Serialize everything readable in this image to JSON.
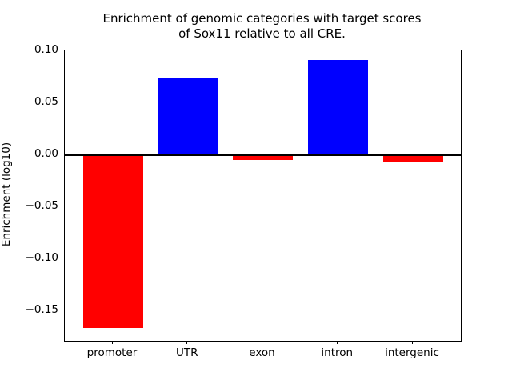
{
  "chart_data": {
    "type": "bar",
    "title_lines": [
      "Enrichment of genomic categories with target scores",
      "of Sox11 relative to all CRE."
    ],
    "title": "Enrichment of genomic categories with target scores of Sox11 relative to all CRE.",
    "xlabel": "",
    "ylabel": "Enrichment (log10)",
    "categories": [
      "promoter",
      "UTR",
      "exon",
      "intron",
      "intergenic"
    ],
    "values": [
      -0.167,
      0.074,
      -0.005,
      0.091,
      -0.007
    ],
    "bar_colors": [
      "#ff0000",
      "#0000ff",
      "#ff0000",
      "#0000ff",
      "#ff0000"
    ],
    "positive_color": "#0000ff",
    "negative_color": "#ff0000",
    "yticks": [
      0.1,
      0.05,
      0.0,
      -0.05,
      -0.1,
      -0.15
    ],
    "ytick_labels": [
      "0.10",
      "0.05",
      "0.00",
      "−0.05",
      "−0.10",
      "−0.15"
    ],
    "ylim": [
      -0.179,
      0.1
    ],
    "bar_width_fraction": 0.8,
    "zero_line": true,
    "grid": false,
    "legend": null,
    "axis_color": "#000000",
    "background_color": "#ffffff"
  }
}
